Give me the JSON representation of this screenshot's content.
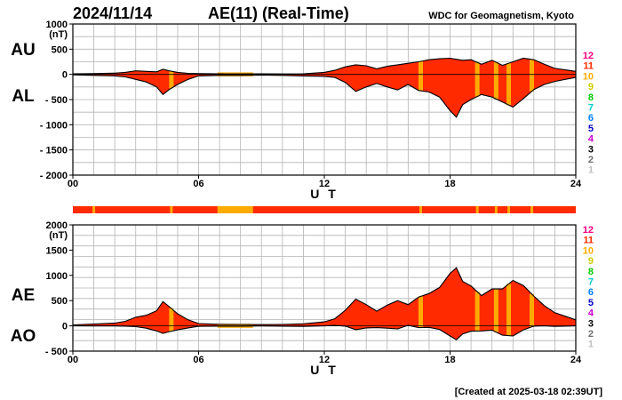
{
  "header": {
    "date": "2024/11/14",
    "title": "AE(11) (Real-Time)",
    "source": "WDC for Geomagnetism, Kyoto"
  },
  "footer": {
    "created": "[Created at 2025-03-18 02:39UT]"
  },
  "colors": {
    "fill_main": "#ff2a00",
    "fill_low": "#ffaa00",
    "count_colors": [
      "#c0c0c0",
      "#707070",
      "#000000",
      "#cc00cc",
      "#0000cc",
      "#0080ff",
      "#00cccc",
      "#00cc00",
      "#cccc00",
      "#ffaa00",
      "#ff2a00",
      "#ff0080"
    ]
  },
  "stations_legend": [
    "12",
    "11",
    "10",
    "9",
    "8",
    "7",
    "6",
    "5",
    "4",
    "3",
    "2",
    "1"
  ],
  "chart_data": [
    {
      "type": "area",
      "panel": "AU/AL",
      "unit": "(nT)",
      "series_labels": [
        "AU",
        "AL"
      ],
      "ylim": [
        -2000,
        1000
      ],
      "yticks": [
        1000,
        500,
        0,
        -500,
        -1000,
        -1500,
        -2000
      ],
      "ytick_labels": [
        "1000",
        "500",
        "0",
        "- 500",
        "- 1000",
        "- 1500",
        "- 2000"
      ],
      "xlim": [
        0,
        24
      ],
      "xticks": [
        0,
        6,
        12,
        18,
        24
      ],
      "xtick_labels": [
        "00",
        "06",
        "12",
        "18",
        "24"
      ],
      "xlabel": "U T",
      "x": [
        0,
        1,
        2,
        2.5,
        3,
        3.5,
        4,
        4.3,
        4.6,
        5,
        5.5,
        6,
        7,
        8,
        9,
        10,
        11,
        12,
        12.5,
        13,
        13.5,
        14,
        14.5,
        15,
        15.5,
        16,
        16.5,
        17,
        17.5,
        18,
        18.3,
        18.6,
        19,
        19.5,
        20,
        20.5,
        21,
        21.5,
        22,
        22.5,
        23,
        23.5,
        24
      ],
      "series": [
        {
          "name": "AU",
          "values": [
            10,
            15,
            25,
            40,
            70,
            60,
            50,
            100,
            70,
            40,
            20,
            15,
            10,
            8,
            10,
            8,
            10,
            40,
            80,
            150,
            190,
            170,
            110,
            160,
            190,
            220,
            250,
            290,
            310,
            320,
            300,
            280,
            290,
            200,
            280,
            180,
            250,
            320,
            290,
            200,
            120,
            90,
            60
          ]
        },
        {
          "name": "AL",
          "values": [
            -10,
            -20,
            -30,
            -50,
            -100,
            -150,
            -250,
            -400,
            -300,
            -200,
            -100,
            -30,
            -20,
            -20,
            -15,
            -20,
            -30,
            -40,
            -60,
            -160,
            -340,
            -250,
            -180,
            -250,
            -310,
            -200,
            -320,
            -350,
            -450,
            -720,
            -850,
            -600,
            -500,
            -400,
            -450,
            -550,
            -650,
            -480,
            -300,
            -200,
            -140,
            -100,
            -60
          ]
        }
      ]
    },
    {
      "type": "area",
      "panel": "AE/AO",
      "unit": "(nT)",
      "series_labels": [
        "AE",
        "AO"
      ],
      "ylim": [
        -500,
        2000
      ],
      "yticks": [
        2000,
        1500,
        1000,
        500,
        0,
        -500
      ],
      "ytick_labels": [
        "2000",
        "1500",
        "1000",
        "500",
        "0",
        "- 500"
      ],
      "xlim": [
        0,
        24
      ],
      "xticks": [
        0,
        6,
        12,
        18,
        24
      ],
      "xtick_labels": [
        "00",
        "06",
        "12",
        "18",
        "24"
      ],
      "xlabel": "U T",
      "x": [
        0,
        1,
        2,
        2.5,
        3,
        3.5,
        4,
        4.3,
        4.6,
        5,
        5.5,
        6,
        7,
        8,
        9,
        10,
        11,
        12,
        12.5,
        13,
        13.5,
        14,
        14.5,
        15,
        15.5,
        16,
        16.5,
        17,
        17.5,
        18,
        18.3,
        18.6,
        19,
        19.5,
        20,
        20.5,
        21,
        21.5,
        22,
        22.5,
        23,
        23.5,
        24
      ],
      "series": [
        {
          "name": "AE",
          "values": [
            20,
            35,
            55,
            90,
            170,
            210,
            300,
            480,
            380,
            240,
            120,
            45,
            30,
            28,
            25,
            28,
            40,
            80,
            140,
            310,
            530,
            420,
            290,
            410,
            500,
            420,
            570,
            640,
            760,
            1040,
            1150,
            880,
            790,
            600,
            730,
            730,
            900,
            800,
            590,
            400,
            260,
            190,
            120
          ]
        },
        {
          "name": "AO",
          "values": [
            0,
            -2,
            -2,
            -5,
            -15,
            -45,
            -100,
            -150,
            -115,
            -80,
            -40,
            -8,
            -5,
            -6,
            -2,
            -6,
            -10,
            0,
            10,
            -5,
            -75,
            -40,
            -35,
            -45,
            -60,
            10,
            -35,
            -30,
            -70,
            -200,
            -275,
            -160,
            -105,
            -100,
            -85,
            -185,
            -200,
            -80,
            -5,
            0,
            -10,
            -5,
            0
          ]
        }
      ]
    }
  ]
}
